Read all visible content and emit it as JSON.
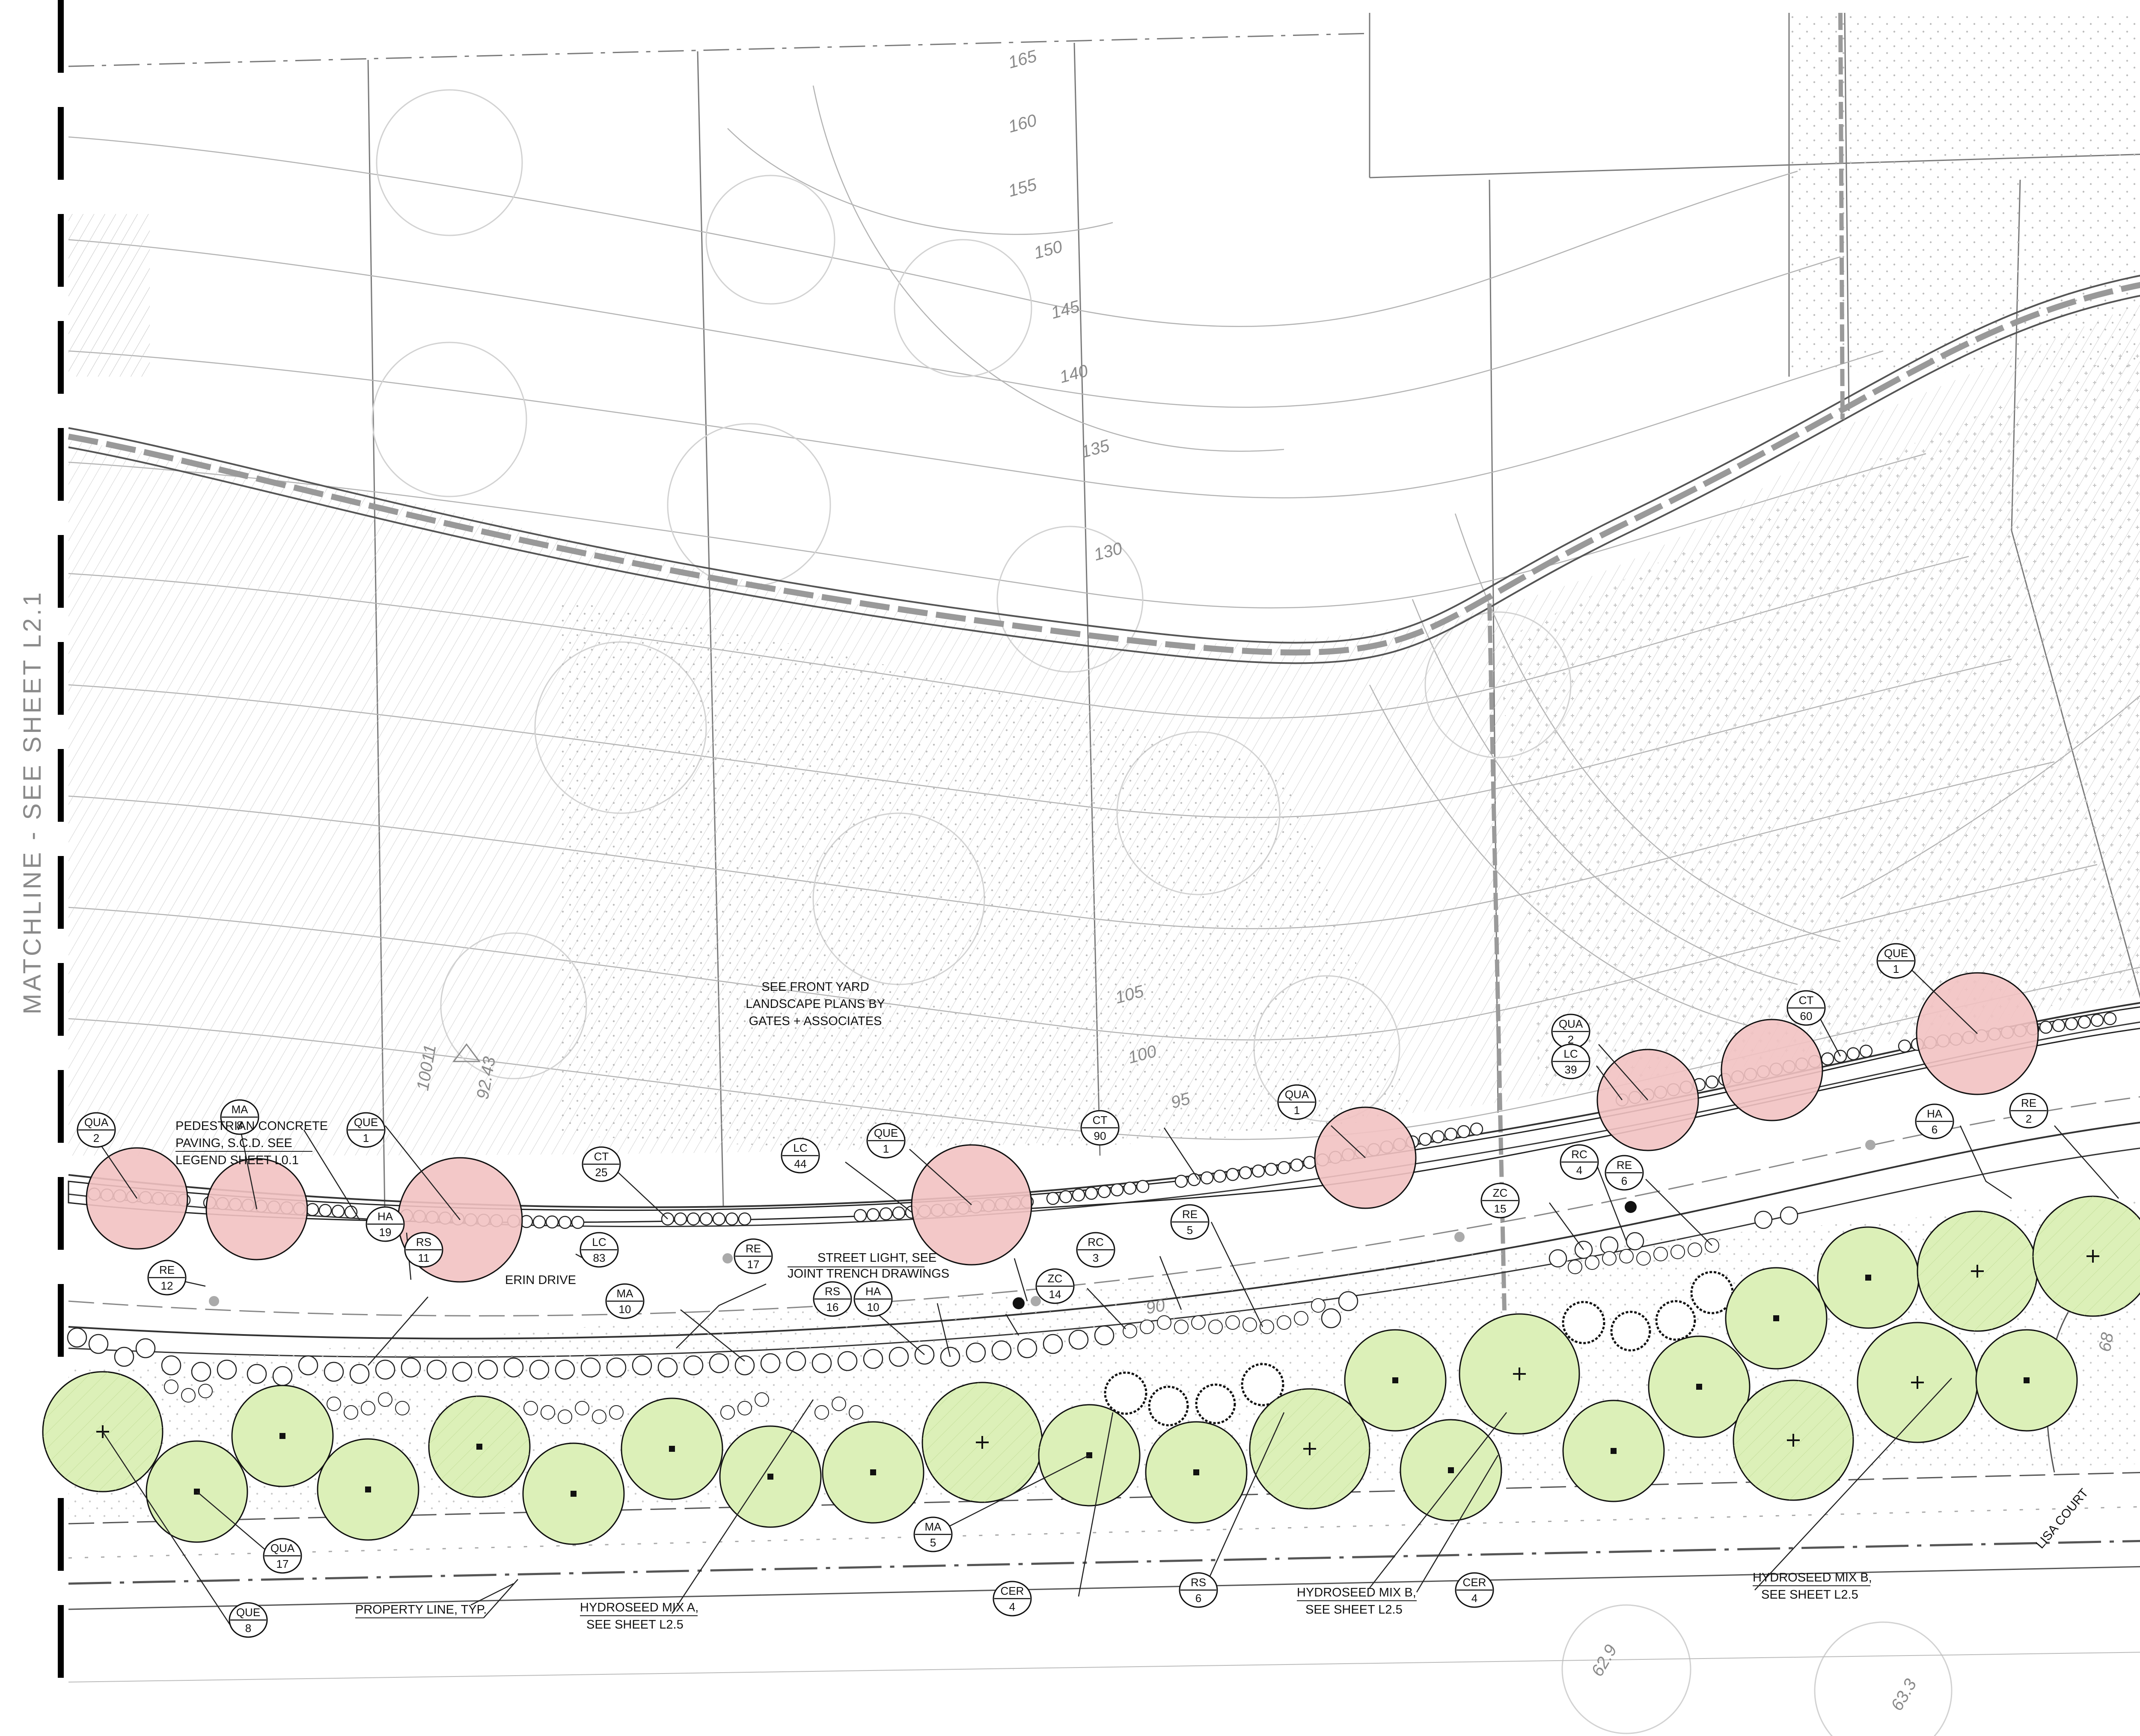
{
  "matchline": {
    "text": "MATCHLINE  -  SEE  SHEET  L2.1"
  },
  "notes": {
    "front_yard": [
      "SEE FRONT YARD",
      "LANDSCAPE PLANS BY",
      "GATES + ASSOCIATES"
    ],
    "pedestrian": [
      "PEDESTRIAN CONCRETE",
      "PAVING, S.C.D. SEE",
      "LEGEND SHEET L0.1"
    ],
    "street_light": [
      "STREET LIGHT, SEE",
      "JOINT TRENCH DRAWINGS"
    ],
    "erin_drive": "ERIN DRIVE",
    "property_line": "PROPERTY LINE, TYP.",
    "hydroseed_a": [
      "HYDROSEED MIX A,",
      "SEE SHEET L2.5"
    ],
    "hydroseed_b1": [
      "HYDROSEED MIX B,",
      "SEE SHEET L2.5"
    ],
    "hydroseed_b2": [
      "HYDROSEED MIX B,",
      "SEE SHEET L2.5"
    ],
    "lisa_court": "LISA COURT",
    "survey_station": "10011",
    "survey_value": "92.43"
  },
  "contour_labels": [
    "165",
    "160",
    "155",
    "150",
    "145",
    "140",
    "135",
    "130",
    "105",
    "100",
    "95",
    "90",
    "68",
    "62.9",
    "63.3"
  ],
  "tags": [
    {
      "code": "QUA",
      "qty": "2"
    },
    {
      "code": "MA",
      "qty": "8"
    },
    {
      "code": "QUE",
      "qty": "1"
    },
    {
      "code": "CT",
      "qty": "25"
    },
    {
      "code": "LC",
      "qty": "44"
    },
    {
      "code": "QUE",
      "qty": "1"
    },
    {
      "code": "CT",
      "qty": "90"
    },
    {
      "code": "QUA",
      "qty": "1"
    },
    {
      "code": "QUA",
      "qty": "2"
    },
    {
      "code": "LC",
      "qty": "39"
    },
    {
      "code": "CT",
      "qty": "60"
    },
    {
      "code": "QUE",
      "qty": "1"
    },
    {
      "code": "RE",
      "qty": "12"
    },
    {
      "code": "HA",
      "qty": "19"
    },
    {
      "code": "RS",
      "qty": "11"
    },
    {
      "code": "LC",
      "qty": "83"
    },
    {
      "code": "MA",
      "qty": "10"
    },
    {
      "code": "RE",
      "qty": "17"
    },
    {
      "code": "RS",
      "qty": "16"
    },
    {
      "code": "HA",
      "qty": "10"
    },
    {
      "code": "ZC",
      "qty": "14"
    },
    {
      "code": "RC",
      "qty": "3"
    },
    {
      "code": "RE",
      "qty": "5"
    },
    {
      "code": "ZC",
      "qty": "15"
    },
    {
      "code": "RC",
      "qty": "4"
    },
    {
      "code": "RE",
      "qty": "6"
    },
    {
      "code": "HA",
      "qty": "6"
    },
    {
      "code": "RE",
      "qty": "2"
    },
    {
      "code": "QUA",
      "qty": "17"
    },
    {
      "code": "QUE",
      "qty": "8"
    },
    {
      "code": "MA",
      "qty": "5"
    },
    {
      "code": "CER",
      "qty": "4"
    },
    {
      "code": "RS",
      "qty": "6"
    },
    {
      "code": "CER",
      "qty": "4"
    }
  ]
}
